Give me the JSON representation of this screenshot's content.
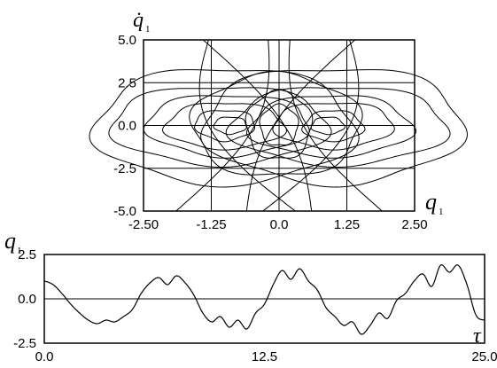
{
  "chart_data": [
    {
      "type": "line",
      "panel": "phase-portrait",
      "xlabel": "q",
      "xlabel_sub": "1",
      "ylabel": "q̇",
      "ylabel_sub": "1",
      "xlim": [
        -2.5,
        2.5
      ],
      "ylim": [
        -5.0,
        5.0
      ],
      "x_ticks": [
        "-2.50",
        "-1.25",
        "0.0",
        "1.25",
        "2.50"
      ],
      "y_ticks": [
        "5.0",
        "2.5",
        "0.0",
        "-2.5",
        "-5.0"
      ],
      "grid": true,
      "description_of_trajectory": "dense closed and open orbits around centres near q1 = -1 and q1 = +1"
    },
    {
      "type": "line",
      "panel": "time-series",
      "xlabel": "τ",
      "ylabel": "q",
      "ylabel_sub": "1",
      "xlim": [
        0.0,
        25.0
      ],
      "ylim": [
        -2.5,
        2.5
      ],
      "x_ticks": [
        "0.0",
        "12.5",
        "25.0"
      ],
      "y_ticks": [
        "2.5",
        "0.0",
        "-2.5"
      ],
      "grid": false,
      "x": [
        0,
        0.5,
        1,
        1.5,
        2,
        2.5,
        3,
        3.5,
        4,
        4.5,
        5,
        5.5,
        6,
        6.5,
        7,
        7.5,
        8,
        8.5,
        9,
        9.5,
        10,
        10.5,
        11,
        11.5,
        12,
        12.5,
        13,
        13.5,
        14,
        14.5,
        15,
        15.5,
        16,
        16.5,
        17,
        17.5,
        18,
        18.5,
        19,
        19.5,
        20,
        20.5,
        21,
        21.5,
        22,
        22.5,
        23,
        23.5,
        24,
        24.5,
        25
      ],
      "y": [
        1.0,
        0.8,
        0.3,
        -0.3,
        -0.8,
        -1.2,
        -1.4,
        -1.2,
        -1.3,
        -1.0,
        -0.6,
        0.3,
        0.9,
        1.2,
        0.8,
        1.3,
        0.9,
        0.2,
        -0.8,
        -1.3,
        -1.0,
        -1.6,
        -1.2,
        -1.7,
        -0.8,
        -0.3,
        0.8,
        1.6,
        1.1,
        1.7,
        1.0,
        0.5,
        -0.5,
        -1.0,
        -1.5,
        -1.3,
        -2.0,
        -1.5,
        -0.8,
        -1.1,
        -0.1,
        0.3,
        1.0,
        1.4,
        0.7,
        1.9,
        1.5,
        1.9,
        0.8,
        -0.9,
        -1.2
      ]
    }
  ]
}
